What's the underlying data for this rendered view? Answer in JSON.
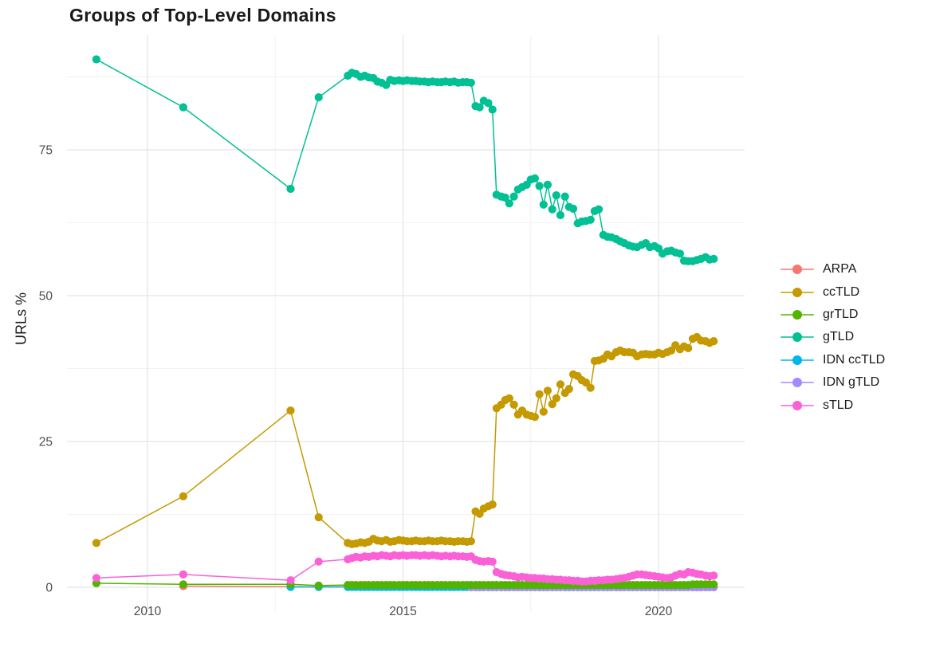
{
  "title": "Groups of Top-Level Domains",
  "chart_data": {
    "type": "line",
    "title": "Groups of Top-Level Domains",
    "xlabel": "",
    "ylabel": "URLs %",
    "xlim": [
      2008.3,
      2021.7
    ],
    "ylim": [
      -4.5,
      95
    ],
    "grid": true,
    "legend_position": "right",
    "x_ticks": {
      "values": [
        2010,
        2015,
        2020
      ],
      "labels": [
        "2010",
        "2015",
        "2020"
      ]
    },
    "y_ticks": {
      "values": [
        0,
        25,
        50,
        75
      ],
      "labels": [
        "0",
        "25",
        "50",
        "75"
      ]
    },
    "x_minor": [
      2012.5,
      2017.5
    ],
    "y_minor": [
      12.5,
      37.5,
      62.5,
      87.5
    ],
    "grid_major_color": "#e4e4e4",
    "grid_minor_color": "#f2f2f2",
    "tick_label_color": "#4d4d4d",
    "x": [
      2009.0,
      2010.7,
      2012.8,
      2013.35,
      2013.92,
      2014.0,
      2014.08,
      2014.17,
      2014.25,
      2014.33,
      2014.42,
      2014.5,
      2014.58,
      2014.67,
      2014.75,
      2014.83,
      2014.92,
      2015.0,
      2015.08,
      2015.17,
      2015.25,
      2015.33,
      2015.42,
      2015.5,
      2015.58,
      2015.67,
      2015.75,
      2015.83,
      2015.92,
      2016.0,
      2016.08,
      2016.17,
      2016.25,
      2016.33,
      2016.42,
      2016.5,
      2016.58,
      2016.67,
      2016.75,
      2016.83,
      2016.92,
      2017.0,
      2017.08,
      2017.17,
      2017.25,
      2017.33,
      2017.42,
      2017.5,
      2017.58,
      2017.67,
      2017.75,
      2017.83,
      2017.92,
      2018.0,
      2018.08,
      2018.17,
      2018.25,
      2018.33,
      2018.42,
      2018.5,
      2018.58,
      2018.67,
      2018.75,
      2018.83,
      2018.92,
      2019.0,
      2019.08,
      2019.17,
      2019.25,
      2019.33,
      2019.42,
      2019.5,
      2019.58,
      2019.67,
      2019.75,
      2019.83,
      2019.92,
      2020.0,
      2020.08,
      2020.17,
      2020.25,
      2020.33,
      2020.42,
      2020.5,
      2020.58,
      2020.67,
      2020.75,
      2020.83,
      2020.92,
      2021.0,
      2021.08
    ],
    "series": [
      {
        "name": "ARPA",
        "color": "#F8766D",
        "values": [
          null,
          0.2,
          0.1,
          0.1,
          0.1,
          0.1,
          0.1,
          0.1,
          0.1,
          0.1,
          0.1,
          0.1,
          0.1,
          0.1,
          0.1,
          0.1,
          0.1,
          0.1,
          0.1,
          0.1,
          0.1,
          0.1,
          0.1,
          0.1,
          0.1,
          0.1,
          0.1,
          0.1,
          0.1,
          0.1,
          0.1,
          0.1,
          0.1,
          0.1,
          0.1,
          0.1,
          0.1,
          0.1,
          0.1,
          0.1,
          0.1,
          0.1,
          0.1,
          0.1,
          0.1,
          0.1,
          0.1,
          0.1,
          0.1,
          0.1,
          0.1,
          0.1,
          0.1,
          0.1,
          0.1,
          0.1,
          0.1,
          0.1,
          0.1,
          0.1,
          0.1,
          0.1,
          0.1,
          0.1,
          0.1,
          0.1,
          0.1,
          0.1,
          0.1,
          0.1,
          0.1,
          0.1,
          0.1,
          0.1,
          0.1,
          0.1,
          0.1,
          0.1,
          0.1,
          0.1,
          0.1,
          0.1,
          0.1,
          0.1,
          0.1,
          0.1,
          0.1,
          0.1,
          0.1,
          0.1,
          0.1
        ]
      },
      {
        "name": "ccTLD",
        "color": "#C49A00",
        "values": [
          7.6,
          15.6,
          30.3,
          12.0,
          7.6,
          7.4,
          7.5,
          7.7,
          7.6,
          7.8,
          8.3,
          8.0,
          7.9,
          8.1,
          7.8,
          7.9,
          8.1,
          8.0,
          7.9,
          7.9,
          8.0,
          7.9,
          7.9,
          8.0,
          7.9,
          7.9,
          8.0,
          7.9,
          7.9,
          7.8,
          7.9,
          7.9,
          7.8,
          7.9,
          13.0,
          12.6,
          13.5,
          13.9,
          14.2,
          30.7,
          31.3,
          32.1,
          32.4,
          31.3,
          29.6,
          30.3,
          29.6,
          29.4,
          29.2,
          33.1,
          30.1,
          33.7,
          31.4,
          32.4,
          34.8,
          33.3,
          34.0,
          36.5,
          36.2,
          35.5,
          35.1,
          34.2,
          38.8,
          38.9,
          39.2,
          39.9,
          39.6,
          40.3,
          40.6,
          40.3,
          40.3,
          40.2,
          39.6,
          39.9,
          40.0,
          39.9,
          39.9,
          40.2,
          40.0,
          40.3,
          40.6,
          41.5,
          40.8,
          41.3,
          41.0,
          42.6,
          42.9,
          42.3,
          42.2,
          41.9,
          42.2
        ]
      },
      {
        "name": "grTLD",
        "color": "#53B400",
        "values": [
          0.7,
          0.5,
          0.5,
          0.3,
          0.4,
          0.4,
          0.4,
          0.4,
          0.4,
          0.4,
          0.4,
          0.4,
          0.4,
          0.4,
          0.4,
          0.4,
          0.4,
          0.4,
          0.4,
          0.4,
          0.4,
          0.4,
          0.4,
          0.4,
          0.4,
          0.4,
          0.4,
          0.4,
          0.4,
          0.4,
          0.4,
          0.4,
          0.4,
          0.4,
          0.4,
          0.4,
          0.4,
          0.4,
          0.4,
          0.4,
          0.4,
          0.4,
          0.4,
          0.4,
          0.4,
          0.4,
          0.4,
          0.4,
          0.4,
          0.4,
          0.4,
          0.4,
          0.4,
          0.4,
          0.4,
          0.4,
          0.4,
          0.4,
          0.4,
          0.4,
          0.4,
          0.4,
          0.4,
          0.4,
          0.4,
          0.4,
          0.4,
          0.4,
          0.4,
          0.4,
          0.4,
          0.4,
          0.4,
          0.4,
          0.4,
          0.4,
          0.4,
          0.4,
          0.4,
          0.4,
          0.4,
          0.4,
          0.4,
          0.4,
          0.4,
          0.5,
          0.5,
          0.5,
          0.5,
          0.5,
          0.5
        ]
      },
      {
        "name": "gTLD",
        "color": "#00C094",
        "values": [
          90.5,
          82.3,
          68.3,
          84.0,
          87.7,
          88.2,
          88.0,
          87.5,
          87.7,
          87.4,
          87.3,
          86.7,
          86.5,
          86.1,
          87.0,
          86.8,
          86.9,
          86.8,
          86.9,
          86.8,
          86.8,
          86.7,
          86.7,
          86.6,
          86.7,
          86.6,
          86.6,
          86.7,
          86.6,
          86.7,
          86.5,
          86.6,
          86.6,
          86.5,
          82.5,
          82.3,
          83.4,
          83.0,
          81.9,
          67.3,
          67.0,
          66.8,
          65.8,
          67.0,
          68.2,
          68.6,
          69.0,
          69.9,
          70.1,
          68.8,
          65.6,
          69.0,
          64.8,
          67.2,
          63.8,
          67.0,
          65.2,
          64.9,
          62.4,
          62.7,
          62.8,
          63.0,
          64.5,
          64.8,
          60.4,
          60.1,
          60.0,
          59.7,
          59.3,
          59.0,
          58.6,
          58.4,
          58.3,
          58.7,
          59.0,
          58.3,
          58.5,
          58.1,
          57.2,
          57.6,
          57.7,
          57.4,
          57.2,
          56.0,
          55.9,
          55.9,
          56.1,
          56.3,
          56.6,
          56.2,
          56.3
        ]
      },
      {
        "name": "IDN ccTLD",
        "color": "#00B6EB",
        "values": [
          null,
          null,
          0.05,
          0.05,
          0.05,
          0.05,
          0.05,
          0.05,
          0.05,
          0.05,
          0.05,
          0.05,
          0.05,
          0.05,
          0.05,
          0.05,
          0.05,
          0.05,
          0.05,
          0.05,
          0.05,
          0.05,
          0.05,
          0.05,
          0.05,
          0.05,
          0.05,
          0.05,
          0.05,
          0.05,
          0.05,
          0.05,
          0.05,
          0.05,
          0.05,
          0.05,
          0.05,
          0.05,
          0.05,
          0.05,
          0.05,
          0.05,
          0.05,
          0.05,
          0.05,
          0.05,
          0.05,
          0.05,
          0.05,
          0.05,
          0.05,
          0.05,
          0.05,
          0.05,
          0.05,
          0.05,
          0.05,
          0.05,
          0.05,
          0.05,
          0.05,
          0.05,
          0.05,
          0.05,
          0.05,
          0.05,
          0.05,
          0.05,
          0.05,
          0.05,
          0.05,
          0.05,
          0.05,
          0.05,
          0.05,
          0.05,
          0.05,
          0.05,
          0.05,
          0.05,
          0.05,
          0.05,
          0.05,
          0.05,
          0.05,
          0.05,
          0.05,
          0.05,
          0.05,
          0.05,
          0.05
        ]
      },
      {
        "name": "IDN gTLD",
        "color": "#A58AFF",
        "values": [
          null,
          null,
          null,
          null,
          null,
          null,
          null,
          null,
          null,
          null,
          null,
          null,
          null,
          null,
          null,
          null,
          null,
          null,
          null,
          null,
          null,
          null,
          null,
          null,
          null,
          null,
          null,
          null,
          null,
          null,
          null,
          null,
          null,
          0.0,
          0.0,
          0.0,
          0.0,
          0.0,
          0.0,
          0.0,
          0.0,
          0.0,
          0.0,
          0.0,
          0.0,
          0.0,
          0.0,
          0.0,
          0.0,
          0.0,
          0.0,
          0.0,
          0.0,
          0.0,
          0.0,
          0.0,
          0.0,
          0.0,
          0.0,
          0.0,
          0.0,
          0.0,
          0.0,
          0.0,
          0.0,
          0.0,
          0.0,
          0.0,
          0.0,
          0.0,
          0.0,
          0.0,
          0.0,
          0.0,
          0.0,
          0.0,
          0.0,
          0.0,
          0.0,
          0.0,
          0.0,
          0.0,
          0.0,
          0.0,
          0.0,
          0.0,
          0.0,
          0.0,
          0.0,
          0.0,
          0.0
        ]
      },
      {
        "name": "sTLD",
        "color": "#FB61D7",
        "values": [
          1.6,
          2.2,
          1.2,
          4.4,
          4.8,
          5.0,
          5.2,
          5.1,
          5.3,
          5.2,
          5.4,
          5.3,
          5.5,
          5.4,
          5.3,
          5.5,
          5.4,
          5.5,
          5.4,
          5.5,
          5.5,
          5.4,
          5.5,
          5.4,
          5.5,
          5.4,
          5.3,
          5.4,
          5.3,
          5.4,
          5.3,
          5.3,
          5.2,
          5.3,
          4.7,
          4.5,
          4.4,
          4.5,
          4.4,
          2.6,
          2.3,
          2.1,
          2.0,
          1.9,
          1.7,
          1.8,
          1.7,
          1.6,
          1.6,
          1.5,
          1.5,
          1.4,
          1.4,
          1.3,
          1.3,
          1.2,
          1.2,
          1.1,
          1.1,
          1.0,
          1.0,
          1.1,
          1.1,
          1.2,
          1.2,
          1.3,
          1.3,
          1.4,
          1.5,
          1.6,
          1.8,
          2.0,
          2.2,
          2.2,
          2.1,
          2.0,
          1.9,
          1.8,
          1.7,
          1.6,
          1.7,
          2.0,
          2.3,
          2.2,
          2.6,
          2.5,
          2.3,
          2.2,
          2.0,
          1.9,
          2.0
        ]
      }
    ],
    "draw_order": [
      "ARPA",
      "IDN ccTLD",
      "IDN gTLD",
      "grTLD",
      "ccTLD",
      "gTLD",
      "sTLD"
    ]
  },
  "legend": {
    "items": [
      {
        "label": "ARPA"
      },
      {
        "label": "ccTLD"
      },
      {
        "label": "grTLD"
      },
      {
        "label": "gTLD"
      },
      {
        "label": "IDN ccTLD"
      },
      {
        "label": "IDN gTLD"
      },
      {
        "label": "sTLD"
      }
    ]
  }
}
